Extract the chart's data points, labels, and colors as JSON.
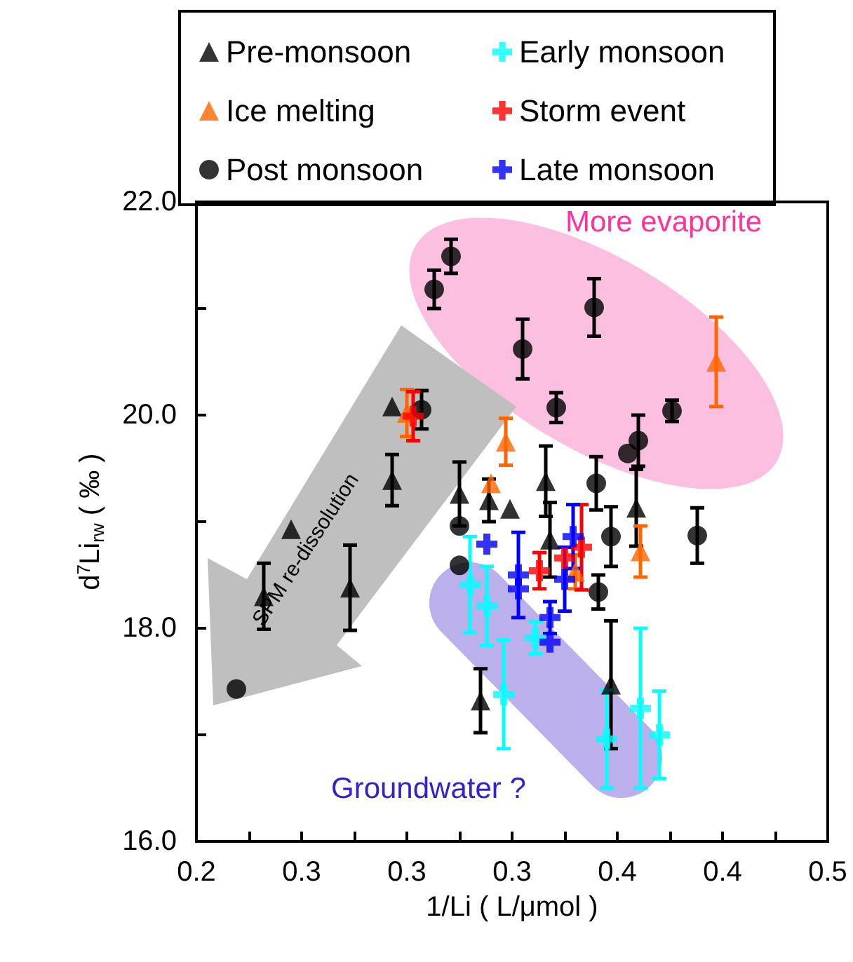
{
  "chart_data": {
    "type": "scatter",
    "xlabel": "1/Li ( L/μmol )",
    "ylabel": "d$^{7}$Li$_{rw}$ ( ‰ )",
    "xlim": [
      0.2,
      0.5
    ],
    "xticks": [
      {
        "value": 0.2,
        "label": "0.2"
      },
      {
        "value": 0.225,
        "label": null
      },
      {
        "value": 0.25,
        "label": "0.3"
      },
      {
        "value": 0.275,
        "label": null
      },
      {
        "value": 0.3,
        "label": "0.3"
      },
      {
        "value": 0.325,
        "label": null
      },
      {
        "value": 0.35,
        "label": "0.3"
      },
      {
        "value": 0.375,
        "label": null
      },
      {
        "value": 0.4,
        "label": "0.4"
      },
      {
        "value": 0.425,
        "label": null
      },
      {
        "value": 0.45,
        "label": "0.4"
      },
      {
        "value": 0.475,
        "label": null
      },
      {
        "value": 0.5,
        "label": "0.5"
      }
    ],
    "ylim": [
      16,
      22
    ],
    "yticks": [
      {
        "value": 16,
        "label": "16.0"
      },
      {
        "value": 17,
        "label": null
      },
      {
        "value": 18,
        "label": "18.0"
      },
      {
        "value": 19,
        "label": null
      },
      {
        "value": 20,
        "label": "20.0"
      },
      {
        "value": 21,
        "label": null
      },
      {
        "value": 22,
        "label": "22.0"
      }
    ],
    "grid": false,
    "legend": "top",
    "annotations": [
      "More evaporite",
      "Groundwater ?",
      "SPM re-dissolution"
    ],
    "series": [
      {
        "name": "Pre-monsoon",
        "color": "#000000",
        "marker": "triangle",
        "x": [
          0.232,
          0.245,
          0.273,
          0.293,
          0.293,
          0.325,
          0.339,
          0.335,
          0.349,
          0.366,
          0.368,
          0.397,
          0.409
        ],
        "values": [
          18.3,
          18.93,
          18.38,
          20.08,
          19.39,
          19.26,
          19.2,
          17.32,
          19.12,
          19.38,
          18.83,
          17.47,
          19.13
        ],
        "errors": [
          0.31,
          null,
          0.4,
          null,
          0.24,
          0.3,
          0.2,
          0.3,
          null,
          0.33,
          0.35,
          0.6,
          0.36
        ]
      },
      {
        "name": "Ice melting",
        "color": "#ff6600",
        "marker": "triangle",
        "x": [
          0.3,
          0.347,
          0.34,
          0.447,
          0.38,
          0.411
        ],
        "values": [
          20.02,
          19.75,
          19.36,
          20.5,
          18.53,
          18.72
        ],
        "errors": [
          0.22,
          0.22,
          null,
          0.42,
          0.16,
          0.24
        ]
      },
      {
        "name": "Post monsoon",
        "color": "#000000",
        "marker": "circle",
        "x": [
          0.219,
          0.321,
          0.313,
          0.307,
          0.355,
          0.389,
          0.371,
          0.426,
          0.41,
          0.405,
          0.39,
          0.438,
          0.397,
          0.391,
          0.325,
          0.325
        ],
        "values": [
          17.43,
          21.49,
          21.18,
          20.05,
          20.62,
          21.01,
          20.07,
          20.04,
          19.76,
          19.64,
          19.36,
          18.87,
          18.86,
          18.34,
          18.96,
          18.59
        ],
        "errors": [
          null,
          0.16,
          0.18,
          0.18,
          0.28,
          0.27,
          0.14,
          0.1,
          0.24,
          null,
          0.25,
          0.26,
          0.28,
          0.16,
          null,
          null
        ]
      },
      {
        "name": "Early monsoon",
        "color": "#00ffff",
        "marker": "cross",
        "x": [
          0.33,
          0.338,
          0.346,
          0.361,
          0.395,
          0.411,
          0.42
        ],
        "values": [
          18.41,
          18.21,
          17.38,
          17.91,
          16.96,
          17.25,
          17.0
        ],
        "errors": [
          0.45,
          0.37,
          0.51,
          0.15,
          0.46,
          0.75,
          0.41
        ]
      },
      {
        "name": "Storm event",
        "color": "#ff0000",
        "marker": "cross",
        "x": [
          0.303,
          0.363,
          0.375,
          0.383
        ],
        "values": [
          19.99,
          18.54,
          18.66,
          18.76
        ],
        "errors": [
          0.23,
          0.17,
          null,
          0.4
        ]
      },
      {
        "name": "Late monsoon",
        "color": "#0000ff",
        "marker": "cross",
        "x": [
          0.338,
          0.353,
          0.353,
          0.368,
          0.368,
          0.379,
          0.375
        ],
        "values": [
          18.79,
          18.5,
          18.37,
          18.1,
          17.87,
          18.86,
          18.46
        ],
        "errors": [
          null,
          0.4,
          null,
          0.15,
          null,
          0.3,
          0.3
        ]
      }
    ]
  }
}
